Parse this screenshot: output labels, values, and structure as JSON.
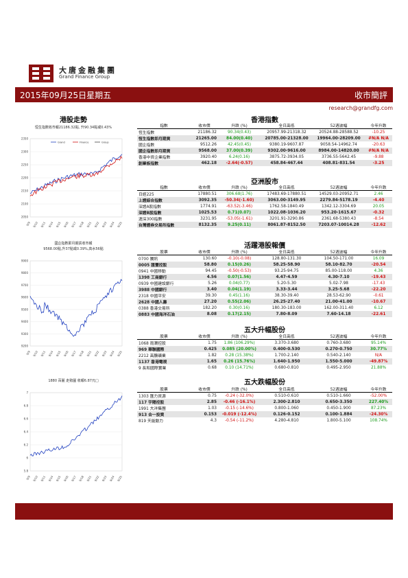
{
  "header": {
    "brand_cn": "大唐金融集團",
    "brand_en": "Grand Finance Group",
    "date": "2015年09月25日星期五",
    "report_type": "收市簡評",
    "email": "research@grandfg.com"
  },
  "left": {
    "hsi_title": "港股走勢",
    "hsi_caption": "恒生指數收市報21186.32點, 升90.34點或0.43%",
    "hsi_legend": [
      "Grand",
      "Finance",
      "Group"
    ],
    "hsi_chart": {
      "type": "line",
      "ylim": [
        2050,
        2350
      ],
      "yticks": [
        "2350",
        "2300",
        "2250",
        "2200",
        "2150",
        "2100",
        "2050"
      ],
      "xticks": [
        "9/9",
        "9/10",
        "9/11",
        "9/14",
        "9/15",
        "9/16",
        "9/17",
        "9/18",
        "9/21",
        "9/22",
        "9/23",
        "9/24",
        "9/25"
      ]
    },
    "hscei_caption_line1": "國企指數即月期貨收市報",
    "hscei_caption_line2": "9568.00點,升37點或0.39%,高水56點",
    "hscei_chart": {
      "type": "line",
      "ylim": [
        9200,
        9900
      ],
      "yticks": [
        "9900",
        "9800",
        "9700",
        "9600",
        "9500",
        "9400",
        "9300",
        "9200"
      ],
      "xticks": [
        "9/9",
        "9/10",
        "9/11",
        "9/14",
        "9/15",
        "9/16",
        "9/17",
        "9/18",
        "9/21",
        "9/22",
        "9/23",
        "9/24",
        "9/25"
      ]
    },
    "stock_caption": "1880 百麗 走勢圖 收報6.87元□",
    "stock_chart": {
      "type": "line",
      "ylim": [
        5.8,
        7.0
      ],
      "yticks": [
        "7",
        "6.8",
        "6.6",
        "6.4",
        "6.2",
        "6",
        "5.8"
      ],
      "xticks": [
        "9/9",
        "9/10",
        "9/11",
        "9/14",
        "9/15",
        "9/16",
        "9/17",
        "9/18",
        "9/21",
        "9/22",
        "9/23",
        "9/24",
        "9/25"
      ]
    }
  },
  "hk": {
    "title": "香港指數",
    "headers": [
      "指數",
      "收市價",
      "升跌 (%)",
      "全日高低",
      "52週波幅",
      "今年升跌"
    ],
    "rows": [
      [
        "恆生指數",
        "21186.32",
        "90.34(0.43)",
        "20957.99-21318.32",
        "20524.88-28588.52",
        "-10.25"
      ],
      [
        "恆生指數即月期貨",
        "21265.00",
        "84.00(0.40)",
        "20785.00-21328.00",
        "19964.00-28209.00",
        "#N/A N/A"
      ],
      [
        "國企指數",
        "9512.26",
        "42.45(0.45)",
        "9380.19-9607.87",
        "9058.54-14962.74",
        "-20.63"
      ],
      [
        "國企指數即月期貨",
        "9568.00",
        "37.00(0.39)",
        "9302.00-9616.00",
        "8984.00-14820.00",
        "#N/A N/A"
      ],
      [
        "香港中資企業指數",
        "3920.40",
        "6.24(0.16)",
        "3875.72-3934.05",
        "3736.55-5642.45",
        "-9.88"
      ],
      [
        "創業板指數",
        "462.18",
        "-2.64(-0.57)",
        "458.84-467.44",
        "408.81-831.54",
        "-3.25"
      ]
    ]
  },
  "asia": {
    "title": "亞洲股市",
    "headers": [
      "指數",
      "收市價",
      "升跌 (%)",
      "全日高低",
      "52週波幅",
      "今年升跌"
    ],
    "rows": [
      [
        "日經225",
        "17880.51",
        "306.68(1.76)",
        "17483.69-17880.51",
        "14529.03-20952.71",
        "2.46"
      ],
      [
        "上證綜合指數",
        "3092.35",
        "-50.34(-1.60)",
        "3063.00-3149.95",
        "2279.84-5178.19",
        "-4.40"
      ],
      [
        "深證A股指數",
        "1774.91",
        "-63.52(-3.46)",
        "1762.58-1840.49",
        "1342.12-3304.69",
        "20.05"
      ],
      [
        "深證B股指數",
        "1025.53",
        "0.71(0.07)",
        "1022.08-1036.20",
        "953.20-1615.67",
        "-0.32"
      ],
      [
        "滬深300指數",
        "3231.95",
        "-53.05(-1.61)",
        "3201.91-3290.86",
        "2361.68-5380.43",
        "-8.54"
      ],
      [
        "台灣證券交易所指數",
        "8132.35",
        "9.25(0.11)",
        "8061.87-8152.50",
        "7203.07-10014.28",
        "-12.62"
      ]
    ]
  },
  "active": {
    "title": "活躍港股報價",
    "headers": [
      "股票",
      "收市價",
      "升跌 (%)",
      "全日高低",
      "52週波幅",
      "今年升跌"
    ],
    "rows": [
      [
        "0700 騰訊",
        "130.60",
        "-0.10(-0.08)",
        "128.80-131.30",
        "104.50-171.00",
        "16.09"
      ],
      [
        "0005 匯豐控股",
        "58.80",
        "0.15(0.26)",
        "58.25-58.90",
        "58.10-82.70",
        "-20.54"
      ],
      [
        "0941 中國移動",
        "94.45",
        "-0.50(-0.53)",
        "93.25-94.75",
        "85.00-118.00",
        "4.36"
      ],
      [
        "1398 工商銀行",
        "4.56",
        "0.07(1.56)",
        "4.47-4.59",
        "4.30-7.10",
        "-19.43"
      ],
      [
        "0939 中國建設銀行",
        "5.26",
        "0.04(0.77)",
        "5.20-5.30",
        "5.02-7.98",
        "-17.43"
      ],
      [
        "3988 中國銀行",
        "3.40",
        "0.04(1.19)",
        "3.33-3.44",
        "3.25-5.68",
        "-22.20"
      ],
      [
        "2318 中國平安",
        "39.30",
        "0.45(1.16)",
        "38.30-39.40",
        "28.53-62.90",
        "-0.61"
      ],
      [
        "2628 中國人壽",
        "27.20",
        "0.55(2.06)",
        "26.25-27.40",
        "21.00-41.00",
        "-10.67"
      ],
      [
        "0388 香港交易所",
        "182.20",
        "0.30(0.16)",
        "180.30-183.00",
        "162.00-311.40",
        "6.12"
      ],
      [
        "0883 中國海洋石油",
        "8.08",
        "0.17(2.15)",
        "7.80-8.09",
        "7.60-14.18",
        "-22.61"
      ]
    ]
  },
  "gainers": {
    "title": "五大升幅股份",
    "headers": [
      "股票",
      "收市價",
      "升跌 (%)",
      "全日高低",
      "52週波幅",
      "今年升跌"
    ],
    "rows": [
      [
        "1068 雨潤控股",
        "1.75",
        "1.86 (106.29%)",
        "3.370-3.680",
        "0.760-3.680",
        "95.14%"
      ],
      [
        "969 華聯國際",
        "0.425",
        "0.085 (20.00%)",
        "0.400-0.530",
        "0.270-0.750",
        "30.77%"
      ],
      [
        "2212 高鵬礦業",
        "1.82",
        "0.28 (15.38%)",
        "1.700-2.140",
        "0.540-2.140",
        "N/A"
      ],
      [
        "1137 香港電視",
        "1.65",
        "0.26 (15.76%)",
        "1.640-1.950",
        "1.550-5.000",
        "-49.87%"
      ],
      [
        "9 長和國際實業",
        "0.68",
        "0.10 (14.71%)",
        "0.680-0.810",
        "0.495-2.950",
        "21.88%"
      ]
    ]
  },
  "losers": {
    "title": "五大跌幅股份",
    "headers": [
      "股票",
      "收市價",
      "升跌 (%)",
      "全日高低",
      "52週波幅",
      "今年升跌"
    ],
    "rows": [
      [
        "1303 匯力資源",
        "0.75",
        "-0.24 (-32.0%)",
        "0.510-0.610",
        "0.510-1.660",
        "-52.00%"
      ],
      [
        "117 宇陽控股",
        "2.85",
        "-0.46 (-16.1%)",
        "2.300-2.810",
        "0.650-3.350",
        "227.40%"
      ],
      [
        "1991 大洋集團",
        "1.03",
        "-0.15 (-14.6%)",
        "0.800-1.060",
        "0.450-1.900",
        "87.23%"
      ],
      [
        "913 合一投資",
        "0.153",
        "-0.019 (-12.4%)",
        "0.126-0.152",
        "0.100-1.884",
        "-24.30%"
      ],
      [
        "819 天能動力",
        "4.3",
        "-0.54 (-11.2%)",
        "4.280-4.810",
        "1.800-5.100",
        "108.74%"
      ]
    ]
  },
  "colors": {
    "accent": "#8a1010",
    "up": "#1a9a1a",
    "down": "#d01010",
    "line_blue": "#1f3fbf",
    "line_red": "#d01010"
  }
}
